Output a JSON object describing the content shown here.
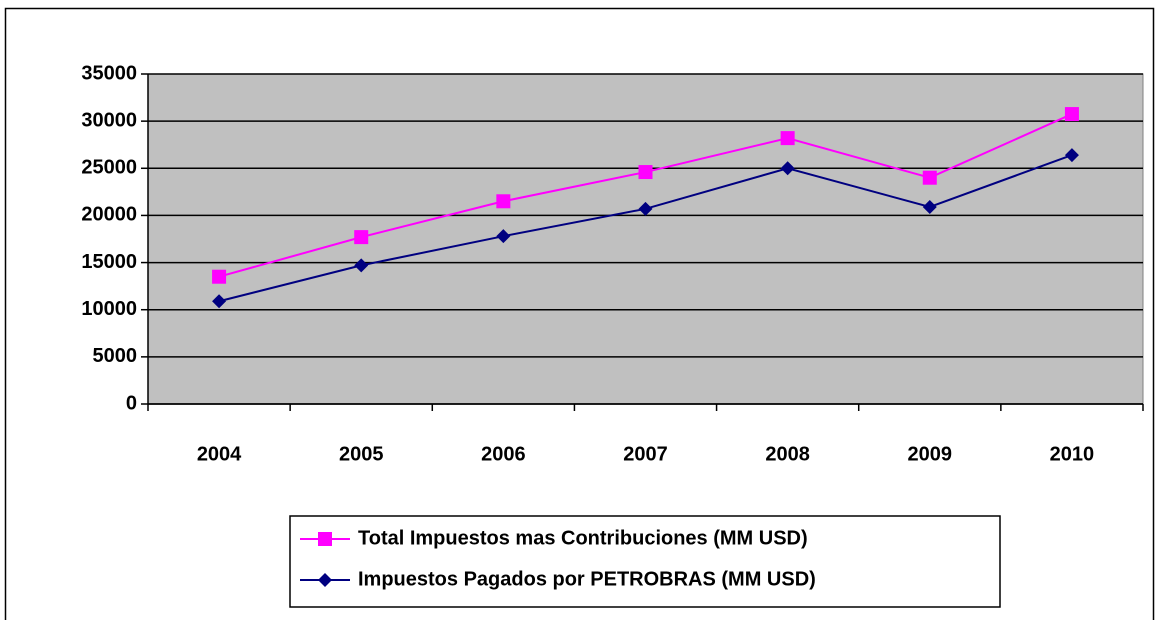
{
  "chart_data": {
    "type": "line",
    "categories": [
      "2004",
      "2005",
      "2006",
      "2007",
      "2008",
      "2009",
      "2010"
    ],
    "series": [
      {
        "name": "Total Impuestos mas Contribuciones (MM USD)",
        "color": "#ff00ff",
        "marker": "square",
        "values": [
          13500,
          17700,
          21500,
          24600,
          28200,
          24000,
          30750
        ]
      },
      {
        "name": "Impuestos Pagados por PETROBRAS (MM USD)",
        "color": "#000080",
        "marker": "diamond",
        "values": [
          10900,
          14700,
          17800,
          20700,
          25000,
          20900,
          26400
        ]
      }
    ],
    "ylim": [
      0,
      35000
    ],
    "yticks": [
      0,
      5000,
      10000,
      15000,
      20000,
      25000,
      30000,
      35000
    ],
    "grid": true,
    "legend": "bottom"
  }
}
